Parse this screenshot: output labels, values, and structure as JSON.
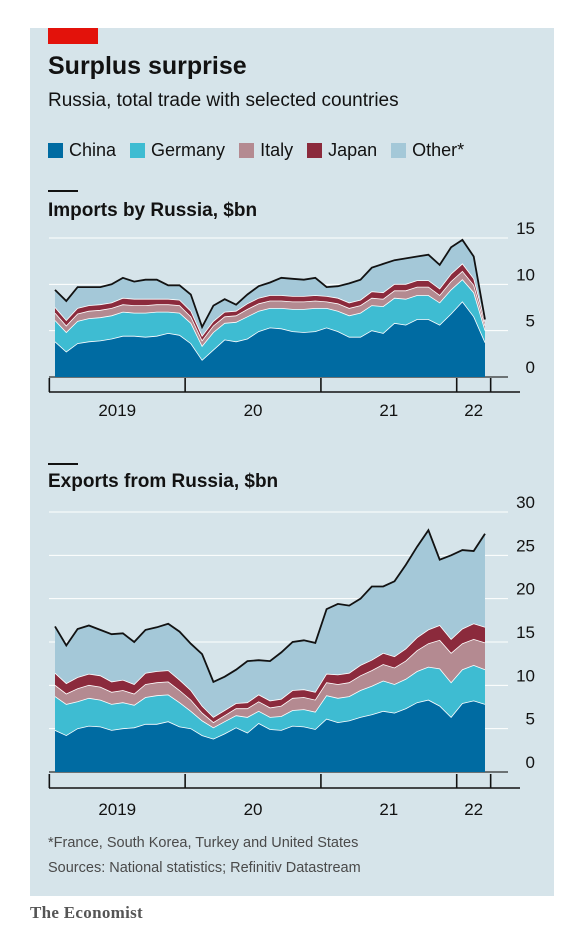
{
  "title": "Surplus surprise",
  "subtitle": "Russia, total trade with selected countries",
  "footnote": "*France, South Korea, Turkey and United States",
  "sources": "Sources: National statistics; Refinitiv Datastream",
  "brand": "The Economist",
  "legend": [
    {
      "label": "China",
      "color": "#006ba2"
    },
    {
      "label": "Germany",
      "color": "#3ebcd2"
    },
    {
      "label": "Italy",
      "color": "#b48a91"
    },
    {
      "label": "Japan",
      "color": "#8b2a3c"
    },
    {
      "label": "Other*",
      "color": "#a4c8d8"
    }
  ],
  "chart_data": [
    {
      "type": "area",
      "stacked": true,
      "title": "Imports by Russia, $bn",
      "x": [
        "2019-01",
        "2019-02",
        "2019-03",
        "2019-04",
        "2019-05",
        "2019-06",
        "2019-07",
        "2019-08",
        "2019-09",
        "2019-10",
        "2019-11",
        "2019-12",
        "2020-01",
        "2020-02",
        "2020-03",
        "2020-04",
        "2020-05",
        "2020-06",
        "2020-07",
        "2020-08",
        "2020-09",
        "2020-10",
        "2020-11",
        "2020-12",
        "2021-01",
        "2021-02",
        "2021-03",
        "2021-04",
        "2021-05",
        "2021-06",
        "2021-07",
        "2021-08",
        "2021-09",
        "2021-10",
        "2021-11",
        "2021-12",
        "2022-01",
        "2022-02",
        "2022-03"
      ],
      "x_tick_labels": [
        "2019",
        "20",
        "21",
        "22"
      ],
      "y_ticks": [
        0,
        5,
        10,
        15
      ],
      "ylim": [
        0,
        15
      ],
      "series": [
        {
          "name": "China",
          "values": [
            3.8,
            2.7,
            3.6,
            3.8,
            3.9,
            4.1,
            4.4,
            4.4,
            4.3,
            4.4,
            4.7,
            4.5,
            3.6,
            1.8,
            2.9,
            4.0,
            3.8,
            4.1,
            4.9,
            5.3,
            5.2,
            4.9,
            4.8,
            4.9,
            5.3,
            4.9,
            4.3,
            4.3,
            5.0,
            4.7,
            5.8,
            5.6,
            6.2,
            6.2,
            5.6,
            6.8,
            8.1,
            6.5,
            3.7
          ]
        },
        {
          "name": "Germany",
          "values": [
            2.3,
            2.1,
            2.4,
            2.5,
            2.5,
            2.5,
            2.6,
            2.5,
            2.6,
            2.6,
            2.3,
            2.4,
            2.2,
            1.5,
            1.9,
            1.8,
            2.1,
            2.4,
            2.2,
            2.1,
            2.2,
            2.4,
            2.5,
            2.5,
            2.1,
            2.2,
            2.3,
            2.6,
            2.7,
            2.9,
            2.7,
            2.8,
            2.6,
            2.6,
            2.4,
            2.6,
            2.4,
            2.6,
            1.3
          ]
        },
        {
          "name": "Italy",
          "values": [
            0.8,
            0.7,
            0.8,
            0.8,
            0.8,
            0.8,
            0.8,
            0.8,
            0.8,
            0.8,
            0.8,
            0.8,
            0.7,
            0.6,
            0.7,
            0.7,
            0.7,
            0.8,
            0.8,
            0.8,
            0.8,
            0.8,
            0.8,
            0.8,
            0.7,
            0.8,
            0.8,
            0.8,
            0.8,
            0.8,
            0.8,
            0.9,
            0.9,
            0.9,
            0.8,
            0.9,
            0.9,
            0.8,
            0.5
          ]
        },
        {
          "name": "Japan",
          "values": [
            0.6,
            0.6,
            0.6,
            0.6,
            0.6,
            0.6,
            0.7,
            0.7,
            0.7,
            0.6,
            0.6,
            0.6,
            0.6,
            0.5,
            0.5,
            0.5,
            0.5,
            0.6,
            0.6,
            0.6,
            0.6,
            0.6,
            0.6,
            0.6,
            0.6,
            0.6,
            0.6,
            0.6,
            0.7,
            0.7,
            0.7,
            0.7,
            0.7,
            0.7,
            0.7,
            0.8,
            0.8,
            0.7,
            0.4
          ]
        },
        {
          "name": "Other*",
          "values": [
            1.9,
            2.1,
            2.3,
            2.0,
            1.9,
            2.0,
            2.2,
            1.9,
            2.1,
            2.1,
            1.5,
            1.6,
            1.8,
            1.0,
            1.7,
            1.4,
            0.7,
            1.0,
            1.3,
            1.4,
            1.9,
            1.9,
            1.8,
            1.9,
            1.0,
            1.3,
            2.1,
            2.2,
            2.6,
            3.1,
            2.6,
            2.8,
            2.6,
            2.8,
            2.6,
            2.9,
            2.6,
            2.4,
            0.3
          ]
        }
      ]
    },
    {
      "type": "area",
      "stacked": true,
      "title": "Exports from Russia, $bn",
      "x": [
        "2019-01",
        "2019-02",
        "2019-03",
        "2019-04",
        "2019-05",
        "2019-06",
        "2019-07",
        "2019-08",
        "2019-09",
        "2019-10",
        "2019-11",
        "2019-12",
        "2020-01",
        "2020-02",
        "2020-03",
        "2020-04",
        "2020-05",
        "2020-06",
        "2020-07",
        "2020-08",
        "2020-09",
        "2020-10",
        "2020-11",
        "2020-12",
        "2021-01",
        "2021-02",
        "2021-03",
        "2021-04",
        "2021-05",
        "2021-06",
        "2021-07",
        "2021-08",
        "2021-09",
        "2021-10",
        "2021-11",
        "2021-12",
        "2022-01",
        "2022-02",
        "2022-03"
      ],
      "x_tick_labels": [
        "2019",
        "20",
        "21",
        "22"
      ],
      "y_ticks": [
        0,
        5,
        10,
        15,
        20,
        25,
        30
      ],
      "ylim": [
        0,
        30
      ],
      "series": [
        {
          "name": "China",
          "values": [
            4.8,
            4.2,
            5.0,
            5.3,
            5.2,
            4.8,
            5.0,
            5.1,
            5.5,
            5.5,
            5.8,
            5.2,
            5.0,
            4.2,
            3.8,
            4.4,
            5.1,
            4.5,
            5.6,
            4.9,
            4.8,
            5.3,
            5.2,
            4.9,
            6.1,
            5.7,
            5.9,
            6.3,
            6.6,
            7.0,
            6.8,
            7.3,
            8.0,
            8.3,
            7.6,
            6.3,
            7.9,
            8.2,
            7.8
          ]
        },
        {
          "name": "Germany",
          "values": [
            3.9,
            3.6,
            3.1,
            3.2,
            3.1,
            3.0,
            3.0,
            2.6,
            3.1,
            3.3,
            3.1,
            2.8,
            2.0,
            1.7,
            1.3,
            1.4,
            1.4,
            1.8,
            1.4,
            1.4,
            1.6,
            1.8,
            2.0,
            2.0,
            2.7,
            2.8,
            2.8,
            3.1,
            3.3,
            3.5,
            3.3,
            3.4,
            3.6,
            3.8,
            4.3,
            4.0,
            3.9,
            4.1,
            4.0
          ]
        },
        {
          "name": "Italy",
          "values": [
            1.3,
            1.2,
            1.5,
            1.5,
            1.5,
            1.4,
            1.4,
            1.3,
            1.5,
            1.5,
            1.5,
            1.4,
            1.3,
            0.9,
            0.6,
            0.7,
            0.8,
            1.0,
            1.1,
            1.1,
            1.2,
            1.4,
            1.4,
            1.4,
            1.5,
            1.6,
            1.6,
            1.7,
            1.8,
            1.9,
            1.9,
            2.1,
            2.4,
            2.7,
            3.3,
            3.4,
            3.0,
            3.0,
            3.1
          ]
        },
        {
          "name": "Japan",
          "values": [
            1.4,
            1.2,
            1.3,
            1.3,
            1.3,
            1.2,
            1.2,
            1.1,
            1.3,
            1.3,
            1.3,
            1.2,
            1.1,
            0.8,
            0.6,
            0.6,
            0.6,
            0.7,
            0.8,
            0.8,
            0.8,
            0.9,
            0.9,
            0.9,
            1.0,
            1.1,
            1.1,
            1.2,
            1.2,
            1.3,
            1.3,
            1.4,
            1.5,
            1.6,
            1.7,
            1.6,
            1.7,
            1.8,
            1.8
          ]
        },
        {
          "name": "Other*",
          "values": [
            5.4,
            4.4,
            5.6,
            5.6,
            5.3,
            5.5,
            5.4,
            4.9,
            5.0,
            5.1,
            5.4,
            5.6,
            5.4,
            6.0,
            4.1,
            3.9,
            3.9,
            4.8,
            4.0,
            4.6,
            5.4,
            5.6,
            5.7,
            5.7,
            7.5,
            8.2,
            7.8,
            7.7,
            8.5,
            7.7,
            8.7,
            9.7,
            10.5,
            11.5,
            7.6,
            9.7,
            9.1,
            8.4,
            10.8
          ]
        }
      ]
    }
  ]
}
